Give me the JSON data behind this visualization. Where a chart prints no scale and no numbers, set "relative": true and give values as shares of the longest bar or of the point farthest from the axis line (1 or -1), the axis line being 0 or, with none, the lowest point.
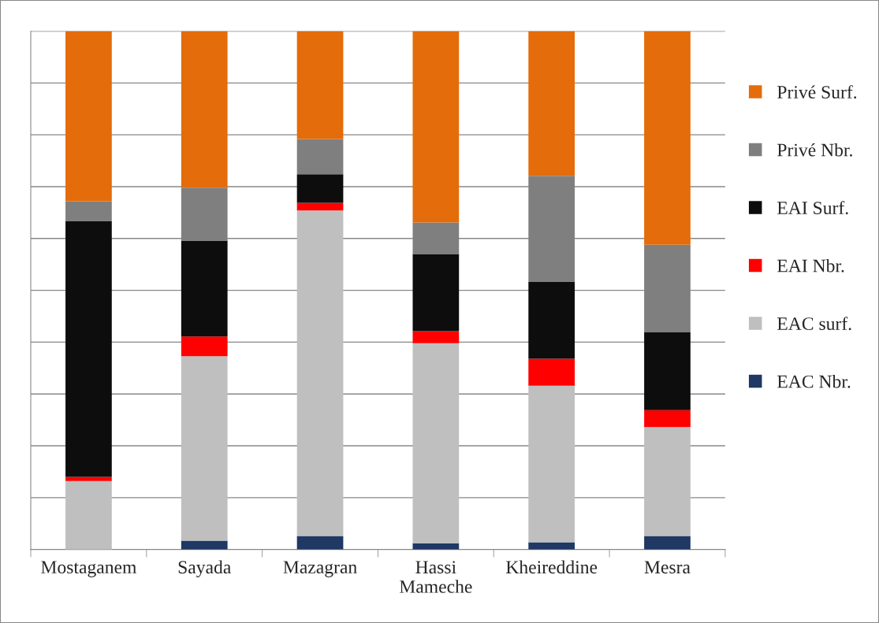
{
  "chart_data": {
    "type": "bar",
    "stacked": true,
    "relative": true,
    "grid": "y",
    "legend": "right",
    "categories": [
      "Mostaganem",
      "Sayada",
      "Mazagran",
      "Hassi\nMameche",
      "Kheireddine",
      "Mesra"
    ],
    "series": [
      {
        "name": "EAC Nbr.",
        "color": "#1f3864",
        "values": [
          0,
          0.017,
          0.026,
          0.012,
          0.014,
          0.026
        ]
      },
      {
        "name": "EAC surf.",
        "color": "#bfbfbf",
        "values": [
          0.132,
          0.356,
          0.628,
          0.386,
          0.302,
          0.21
        ]
      },
      {
        "name": "EAI Nbr.",
        "color": "#ff0000",
        "values": [
          0.008,
          0.038,
          0.015,
          0.023,
          0.052,
          0.033
        ]
      },
      {
        "name": "EAI Surf.",
        "color": "#0d0d0d",
        "values": [
          0.494,
          0.185,
          0.055,
          0.149,
          0.149,
          0.15
        ]
      },
      {
        "name": "Privé Nbr.",
        "color": "#7f7f7f",
        "values": [
          0.038,
          0.102,
          0.068,
          0.061,
          0.204,
          0.169
        ]
      },
      {
        "name": "Privé Surf.",
        "color": "#e46c0a",
        "values": [
          0.328,
          0.302,
          0.208,
          0.369,
          0.279,
          0.412
        ]
      }
    ]
  }
}
